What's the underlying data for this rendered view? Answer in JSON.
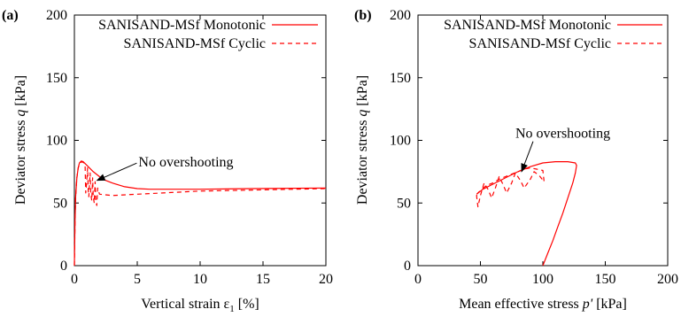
{
  "chart_data": [
    {
      "panel_tag": "(a)",
      "type": "line",
      "xlabel_main": "Vertical strain ε",
      "xlabel_sub": "1",
      "xlabel_unit": " [%]",
      "ylabel_main": "Deviator stress ",
      "ylabel_var": "q",
      "ylabel_unit": " [kPa]",
      "xlim": [
        0,
        20
      ],
      "ylim": [
        0,
        200
      ],
      "xticks": [
        0,
        5,
        10,
        15,
        20
      ],
      "yticks": [
        0,
        50,
        100,
        150,
        200
      ],
      "legend_position": "top-right",
      "annotation": {
        "text": "No overshooting",
        "x": 5.1,
        "y": 79,
        "arrow_to": [
          1.8,
          68
        ]
      },
      "series": [
        {
          "name": "SANISAND-MSf Monotonic",
          "style": "solid",
          "color": "#ff0000",
          "points": [
            [
              0,
              0
            ],
            [
              0.05,
              35
            ],
            [
              0.1,
              55
            ],
            [
              0.2,
              70
            ],
            [
              0.3,
              78
            ],
            [
              0.4,
              82
            ],
            [
              0.55,
              83.5
            ],
            [
              0.7,
              83
            ],
            [
              1.0,
              80
            ],
            [
              1.5,
              75
            ],
            [
              2.0,
              71
            ],
            [
              2.5,
              68
            ],
            [
              3.0,
              66
            ],
            [
              4.0,
              63
            ],
            [
              5.0,
              61.5
            ],
            [
              6.0,
              61
            ],
            [
              8.0,
              61
            ],
            [
              10.0,
              61
            ],
            [
              14.0,
              61.5
            ],
            [
              20.0,
              62
            ]
          ]
        },
        {
          "name": "SANISAND-MSf Cyclic",
          "style": "dashed",
          "color": "#ff0000",
          "points": [
            [
              0,
              0
            ],
            [
              0.05,
              35
            ],
            [
              0.1,
              55
            ],
            [
              0.2,
              70
            ],
            [
              0.3,
              78
            ],
            [
              0.45,
              82
            ],
            [
              0.6,
              83
            ],
            [
              0.75,
              82
            ],
            [
              0.85,
              80
            ],
            [
              0.9,
              58
            ],
            [
              0.95,
              63
            ],
            [
              1.05,
              78
            ],
            [
              1.1,
              60
            ],
            [
              1.15,
              55
            ],
            [
              1.25,
              74
            ],
            [
              1.3,
              57
            ],
            [
              1.38,
              52
            ],
            [
              1.45,
              70
            ],
            [
              1.5,
              55
            ],
            [
              1.58,
              50
            ],
            [
              1.65,
              67
            ],
            [
              1.7,
              52
            ],
            [
              1.78,
              48
            ],
            [
              1.85,
              62
            ],
            [
              2.0,
              57
            ],
            [
              3.0,
              56
            ],
            [
              5.0,
              57
            ],
            [
              8.0,
              58.5
            ],
            [
              10.0,
              59.5
            ],
            [
              15.0,
              60.5
            ],
            [
              20.0,
              61.5
            ]
          ]
        }
      ]
    },
    {
      "panel_tag": "(b)",
      "type": "line",
      "xlabel_main": "Mean effective stress ",
      "xlabel_var": "p'",
      "xlabel_unit": " [kPa]",
      "ylabel_main": "Deviator stress ",
      "ylabel_var": "q",
      "ylabel_unit": " [kPa]",
      "xlim": [
        0,
        200
      ],
      "ylim": [
        0,
        200
      ],
      "xticks": [
        0,
        50,
        100,
        150,
        200
      ],
      "yticks": [
        0,
        50,
        100,
        150,
        200
      ],
      "legend_position": "top-right",
      "annotation": {
        "text": "No overshooting",
        "x": 78,
        "y": 102,
        "arrow_to": [
          83,
          75
        ]
      },
      "series": [
        {
          "name": "SANISAND-MSf Monotonic",
          "style": "solid",
          "color": "#ff0000",
          "points": [
            [
              100,
              0
            ],
            [
              104,
              10
            ],
            [
              108,
              20
            ],
            [
              112,
              31
            ],
            [
              116,
              42
            ],
            [
              120,
              54
            ],
            [
              124,
              66
            ],
            [
              126,
              74
            ],
            [
              127,
              80
            ],
            [
              126,
              82
            ],
            [
              120,
              83
            ],
            [
              110,
              83
            ],
            [
              100,
              82
            ],
            [
              90,
              79
            ],
            [
              80,
              75
            ],
            [
              70,
              70
            ],
            [
              60,
              65
            ],
            [
              52,
              61
            ],
            [
              47,
              57
            ]
          ]
        },
        {
          "name": "SANISAND-MSf Cyclic",
          "style": "dashed",
          "color": "#ff0000",
          "points": [
            [
              47,
              57
            ],
            [
              50,
              60
            ],
            [
              55,
              64
            ],
            [
              60,
              66
            ],
            [
              65,
              69
            ],
            [
              70,
              71
            ],
            [
              75,
              73
            ],
            [
              80,
              75
            ],
            [
              85,
              77
            ],
            [
              90,
              78
            ],
            [
              95,
              77
            ],
            [
              100,
              76
            ],
            [
              101,
              67
            ],
            [
              97,
              72
            ],
            [
              93,
              75
            ],
            [
              90,
              69
            ],
            [
              85,
              62
            ],
            [
              82,
              68
            ],
            [
              78,
              74
            ],
            [
              75,
              66
            ],
            [
              71,
              58
            ],
            [
              68,
              65
            ],
            [
              65,
              71
            ],
            [
              62,
              62
            ],
            [
              59,
              54
            ],
            [
              56,
              61
            ],
            [
              53,
              66
            ],
            [
              50,
              56
            ],
            [
              48,
              47
            ],
            [
              47,
              55
            ],
            [
              47,
              57
            ]
          ]
        }
      ]
    }
  ]
}
